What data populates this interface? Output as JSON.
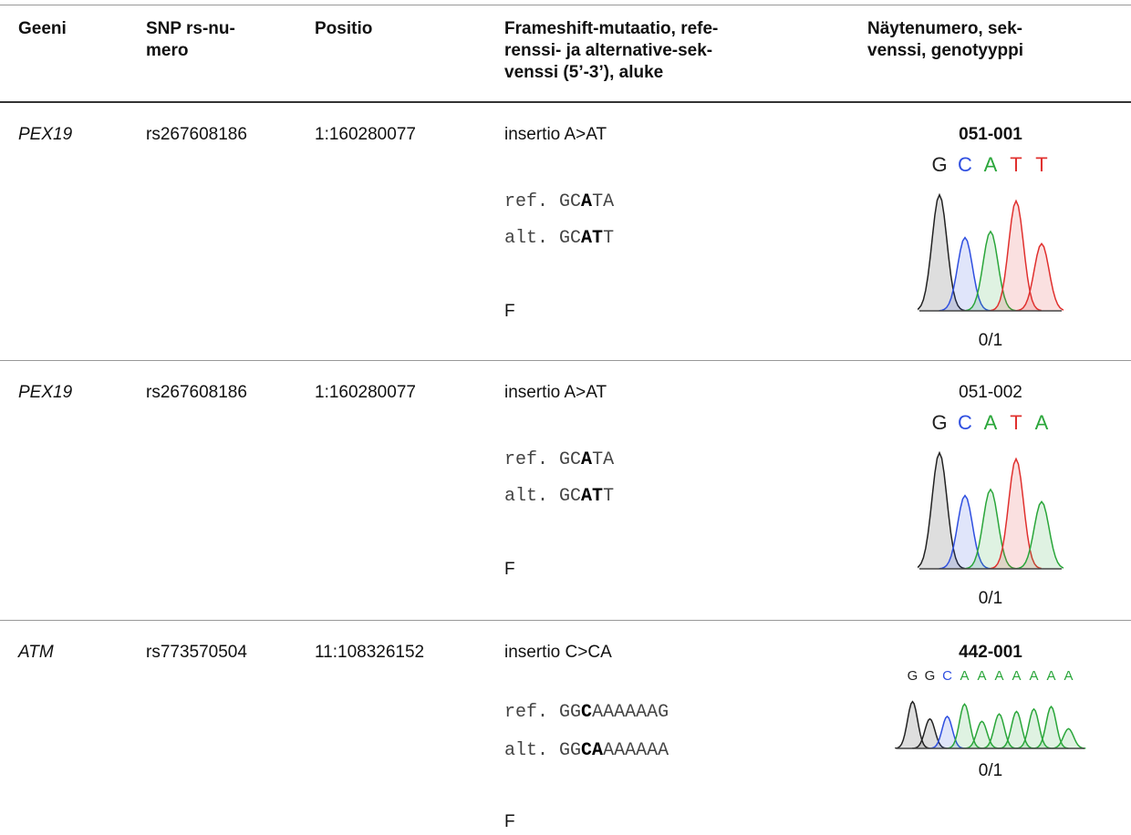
{
  "table": {
    "header": [
      [
        "Geeni"
      ],
      [
        "SNP rs-nu-",
        "mero"
      ],
      [
        "Positio"
      ],
      [
        "Frameshift-mutaatio, refe-",
        "renssi- ja alternative-sek-",
        "venssi (5’-3’), aluke"
      ],
      [
        "Näytenumero, sek-",
        "venssi, genotyyppi"
      ]
    ],
    "rows": [
      {
        "gene": "PEX19",
        "snp": "rs267608186",
        "position": "1:160280077",
        "mutation": "insertio A>AT",
        "ref": {
          "label": "ref.",
          "seq": [
            {
              "text": "GC"
            },
            {
              "text": "A",
              "bold": true
            },
            {
              "text": "TA"
            }
          ]
        },
        "alt": {
          "label": "alt.",
          "seq": [
            {
              "text": "GC"
            },
            {
              "text": "AT",
              "bold": true
            },
            {
              "text": "T"
            }
          ]
        },
        "primer": "F",
        "sample": "051-001",
        "sample_bold": true,
        "bases": [
          "G",
          "C",
          "A",
          "T",
          "T"
        ],
        "genotype": "0/1"
      },
      {
        "gene": "PEX19",
        "snp": "rs267608186",
        "position": "1:160280077",
        "mutation": "insertio A>AT",
        "ref": {
          "label": "ref.",
          "seq": [
            {
              "text": "GC"
            },
            {
              "text": "A",
              "bold": true
            },
            {
              "text": "TA"
            }
          ]
        },
        "alt": {
          "label": "alt.",
          "seq": [
            {
              "text": "GC"
            },
            {
              "text": "AT",
              "bold": true
            },
            {
              "text": "T"
            }
          ]
        },
        "primer": "F",
        "sample": "051-002",
        "sample_bold": false,
        "bases": [
          "G",
          "C",
          "A",
          "T",
          "A"
        ],
        "genotype": "0/1"
      },
      {
        "gene": "ATM",
        "snp": "rs773570504",
        "position": "11:108326152",
        "mutation": "insertio C>CA",
        "ref": {
          "label": "ref.",
          "seq": [
            {
              "text": "GG"
            },
            {
              "text": "C",
              "bold": true
            },
            {
              "text": "AAAAAAG"
            }
          ]
        },
        "alt": {
          "label": "alt.",
          "seq": [
            {
              "text": "GG"
            },
            {
              "text": "CA",
              "bold": true
            },
            {
              "text": "AAAAAA"
            }
          ]
        },
        "primer": "F",
        "sample": "442-001",
        "sample_bold": true,
        "bases": [
          "G",
          "G",
          "C",
          "A",
          "A",
          "A",
          "A",
          "A",
          "A",
          "A"
        ],
        "genotype": "0/1"
      }
    ]
  }
}
